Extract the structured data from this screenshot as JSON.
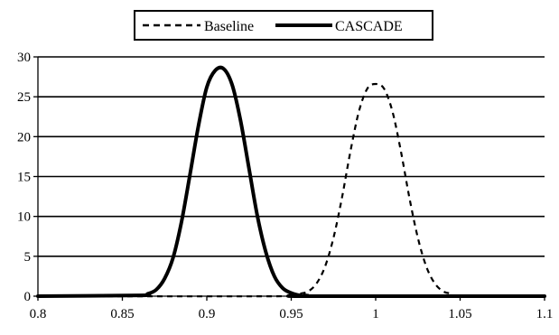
{
  "chart_data": {
    "type": "line",
    "x_ticks": [
      "0.8",
      "0.85",
      "0.9",
      "0.95",
      "1",
      "1.05",
      "1.1"
    ],
    "y_ticks": [
      "0",
      "5",
      "10",
      "15",
      "20",
      "25",
      "30"
    ],
    "xlim": [
      0.8,
      1.1
    ],
    "ylim": [
      0,
      30
    ],
    "grid": "horizontal",
    "legend_position": "top-center",
    "colors": {
      "line": "#000000",
      "background": "#ffffff"
    },
    "series": [
      {
        "name": "Baseline",
        "style": "dashed",
        "x": [
          0.8,
          0.95,
          0.955,
          0.96,
          0.965,
          0.97,
          0.975,
          0.98,
          0.985,
          0.99,
          0.995,
          1.0,
          1.005,
          1.01,
          1.015,
          1.02,
          1.025,
          1.03,
          1.035,
          1.04,
          1.045,
          1.05,
          1.1
        ],
        "values": [
          0.0,
          0.0,
          0.3,
          0.6,
          1.6,
          3.7,
          7.3,
          12.3,
          18.1,
          23.1,
          26.0,
          26.6,
          26.0,
          23.1,
          18.1,
          12.3,
          7.3,
          3.7,
          1.6,
          0.6,
          0.3,
          0.0,
          0.0
        ]
      },
      {
        "name": "CASCADE",
        "style": "solid",
        "x": [
          0.8,
          0.86,
          0.865,
          0.87,
          0.875,
          0.88,
          0.885,
          0.89,
          0.895,
          0.9,
          0.905,
          0.91,
          0.915,
          0.92,
          0.925,
          0.93,
          0.935,
          0.94,
          0.945,
          0.95,
          0.955,
          0.96,
          1.1
        ],
        "values": [
          0.0,
          0.1,
          0.3,
          0.8,
          2.2,
          4.8,
          9.3,
          15.2,
          21.3,
          26.2,
          28.3,
          28.5,
          26.5,
          22.0,
          16.0,
          10.0,
          5.5,
          2.5,
          1.0,
          0.4,
          0.1,
          0.0,
          0.0
        ]
      }
    ]
  }
}
